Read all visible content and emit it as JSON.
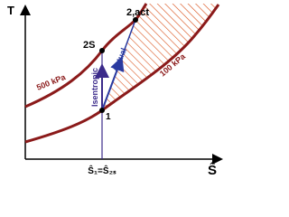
{
  "axes": {
    "y_label": "T",
    "x_label": "Ŝ"
  },
  "points": {
    "p1": "1",
    "p2s": "2S",
    "p2act": "2,act"
  },
  "curves": {
    "high": "500 kPa",
    "low": "100 kPa"
  },
  "processes": {
    "isentropic": "Isentropic",
    "actual": "Actual"
  },
  "entropy_label": "Ŝ₁=Ŝ₂ₛ"
}
